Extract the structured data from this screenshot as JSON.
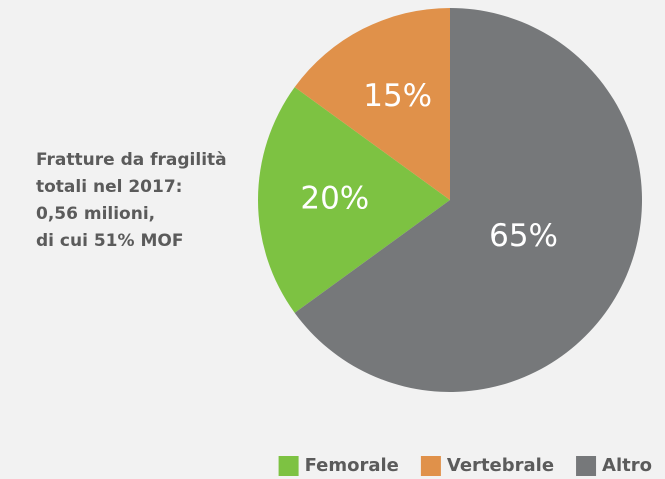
{
  "chart_data": {
    "type": "pie",
    "annotation": [
      "Fratture da fragilità",
      "totali nel 2017:",
      "0,56 milioni,",
      "di cui 51% MOF"
    ],
    "categories": [
      "Femorale",
      "Vertebrale",
      "Altro"
    ],
    "values": [
      20,
      15,
      65
    ],
    "value_labels": [
      "20%",
      "15%",
      "65%"
    ],
    "colors": [
      "#7dc242",
      "#e0914a",
      "#76787a"
    ],
    "legend": "bottom-right"
  }
}
